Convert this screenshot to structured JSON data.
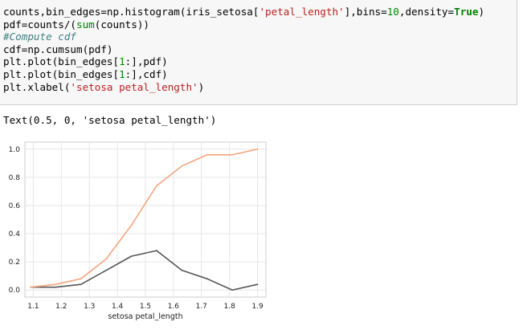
{
  "code": {
    "lines": [
      [
        {
          "t": "counts,bin_edges=np.histogram(iris_setosa[",
          "c": "#000000"
        },
        {
          "t": "'petal_length'",
          "c": "#ba2121"
        },
        {
          "t": "],bins=",
          "c": "#000000"
        },
        {
          "t": "10",
          "c": "#008800"
        },
        {
          "t": ",density=",
          "c": "#000000"
        },
        {
          "t": "True",
          "c": "#008000",
          "b": true
        },
        {
          "t": ")",
          "c": "#000000"
        }
      ],
      [
        {
          "t": "pdf=counts/(",
          "c": "#000000"
        },
        {
          "t": "sum",
          "c": "#008000"
        },
        {
          "t": "(counts))",
          "c": "#000000"
        }
      ],
      [
        {
          "t": "#Compute cdf",
          "c": "#408080",
          "i": true
        }
      ],
      [
        {
          "t": "cdf=np.cumsum(pdf)",
          "c": "#000000"
        }
      ],
      [
        {
          "t": "plt.plot(bin_edges[",
          "c": "#000000"
        },
        {
          "t": "1",
          "c": "#008800"
        },
        {
          "t": ":],pdf)",
          "c": "#000000"
        }
      ],
      [
        {
          "t": "plt.plot(bin_edges[",
          "c": "#000000"
        },
        {
          "t": "1",
          "c": "#008800"
        },
        {
          "t": ":],cdf)",
          "c": "#000000"
        }
      ],
      [
        {
          "t": "plt.xlabel(",
          "c": "#000000"
        },
        {
          "t": "'setosa petal_length'",
          "c": "#ba2121"
        },
        {
          "t": ")",
          "c": "#000000"
        }
      ]
    ]
  },
  "output_text": "Text(0.5, 0, 'setosa petal_length')",
  "chart_data": {
    "type": "line",
    "xlabel": "setosa petal_length",
    "xlim": [
      1.07,
      1.93
    ],
    "ylim": [
      -0.05,
      1.05
    ],
    "xticks": [
      1.1,
      1.2,
      1.3,
      1.4,
      1.5,
      1.6,
      1.7,
      1.8,
      1.9
    ],
    "yticks": [
      0.0,
      0.2,
      0.4,
      0.6,
      0.8,
      1.0
    ],
    "grid": true,
    "series": [
      {
        "color": "#555555",
        "x": [
          1.09,
          1.18,
          1.27,
          1.36,
          1.45,
          1.54,
          1.63,
          1.72,
          1.81,
          1.9
        ],
        "y": [
          0.02,
          0.02,
          0.04,
          0.14,
          0.24,
          0.28,
          0.14,
          0.08,
          0.0,
          0.04
        ]
      },
      {
        "color": "#f4a57f",
        "x": [
          1.09,
          1.18,
          1.27,
          1.36,
          1.45,
          1.54,
          1.63,
          1.72,
          1.81,
          1.9
        ],
        "y": [
          0.02,
          0.04,
          0.08,
          0.22,
          0.46,
          0.74,
          0.88,
          0.96,
          0.96,
          1.0
        ]
      }
    ]
  }
}
